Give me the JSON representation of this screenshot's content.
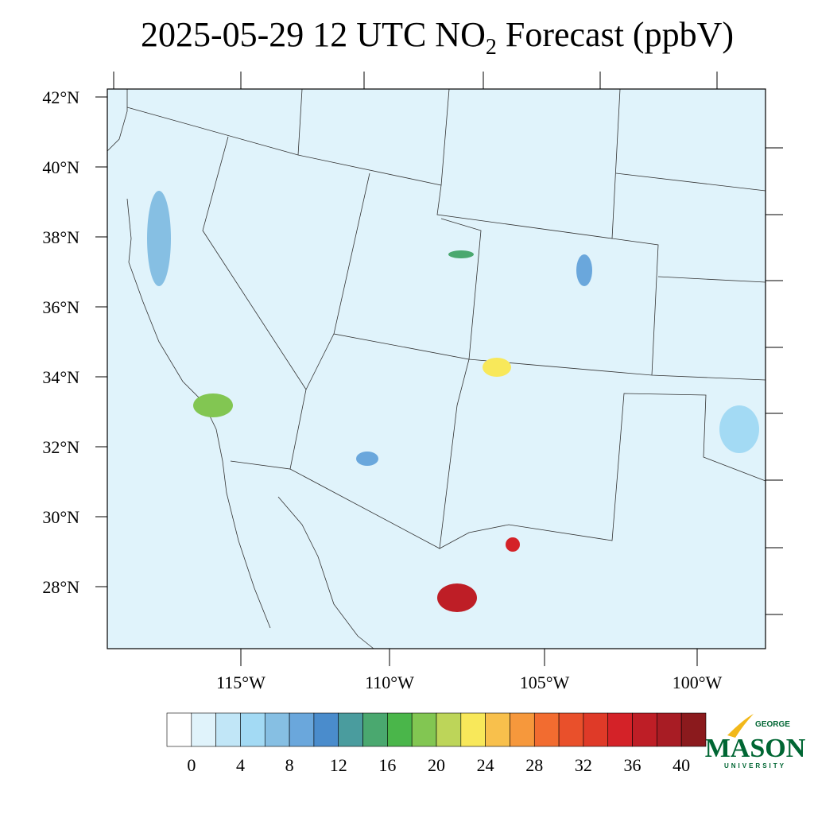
{
  "title": {
    "main": "2025-05-29 12 UTC NO",
    "subscript": "2",
    "rest": " Forecast (ppbV)"
  },
  "map": {
    "lat_labels": [
      "42°N",
      "40°N",
      "38°N",
      "36°N",
      "34°N",
      "32°N",
      "30°N",
      "28°N"
    ],
    "lon_labels": [
      "115°W",
      "110°W",
      "105°W",
      "100°W"
    ]
  },
  "colorbar": {
    "colors": [
      "#ffffff",
      "#e0f3fb",
      "#c1e6f7",
      "#a3daf4",
      "#86bfe3",
      "#6aa7dc",
      "#4a8ccc",
      "#4a9c9e",
      "#4aa86f",
      "#4ab64a",
      "#82c652",
      "#bdd559",
      "#f8e85a",
      "#f8c04c",
      "#f6983c",
      "#f26c30",
      "#e9502b",
      "#df3a28",
      "#d42228",
      "#be1e26",
      "#a81c24",
      "#8b1a1d"
    ],
    "ticks": [
      0,
      4,
      8,
      12,
      16,
      20,
      24,
      28,
      32,
      36,
      40
    ],
    "step": 2
  },
  "logo": {
    "top": "GEORGE",
    "name": "MASON",
    "bottom": "UNIVERSITY"
  }
}
